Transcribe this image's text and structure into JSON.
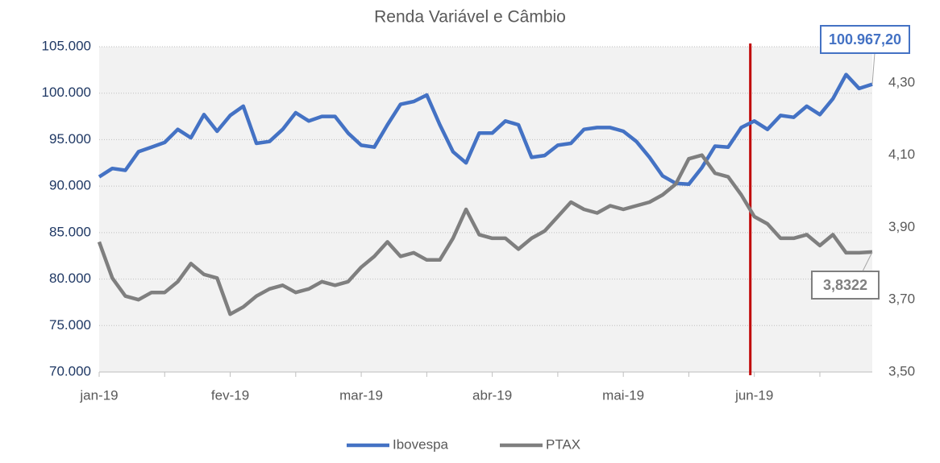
{
  "chart_data": {
    "type": "line",
    "title": "Renda Variável  e  Câmbio",
    "categories": [
      "jan-19",
      null,
      null,
      null,
      null,
      null,
      null,
      null,
      null,
      null,
      "fev-19",
      null,
      null,
      null,
      null,
      null,
      null,
      null,
      null,
      null,
      "mar-19",
      null,
      null,
      null,
      null,
      null,
      null,
      null,
      null,
      null,
      "abr-19",
      null,
      null,
      null,
      null,
      null,
      null,
      null,
      null,
      null,
      "mai-19",
      null,
      null,
      null,
      null,
      null,
      null,
      null,
      null,
      null,
      "jun-19",
      null,
      null,
      null,
      null,
      null,
      null,
      null,
      null,
      null
    ],
    "series": [
      {
        "name": "Ibovespa",
        "color": "#4472c4",
        "axis": "y",
        "values": [
          91000,
          91900,
          91700,
          93700,
          94200,
          94700,
          96100,
          95200,
          97700,
          95900,
          97600,
          98600,
          94600,
          94800,
          96100,
          97900,
          97000,
          97500,
          97500,
          95700,
          94400,
          94200,
          96600,
          98800,
          99100,
          99800,
          96600,
          93700,
          92500,
          95700,
          95700,
          97000,
          96600,
          93100,
          93300,
          94400,
          94600,
          96100,
          96300,
          96300,
          95900,
          94800,
          93100,
          91100,
          90300,
          90200,
          92000,
          94300,
          94200,
          96300,
          97000,
          96100,
          97600,
          97400,
          98600,
          97700,
          99400,
          102000,
          100500,
          100967.2
        ],
        "value_labels": [
          null,
          null,
          null,
          null,
          null,
          null,
          null,
          null,
          null,
          null,
          null,
          null,
          null,
          null,
          null,
          null,
          null,
          null,
          null,
          null,
          null,
          null,
          null,
          null,
          null,
          null,
          null,
          null,
          null,
          null,
          null,
          null,
          null,
          null,
          null,
          null,
          null,
          null,
          null,
          null,
          null,
          null,
          null,
          null,
          null,
          null,
          null,
          null,
          null,
          null,
          null,
          null,
          null,
          null,
          null,
          null,
          null,
          null,
          null,
          "100.967,20"
        ]
      },
      {
        "name": "PTAX",
        "color": "#7f7f7f",
        "axis": "y2",
        "values": [
          3.86,
          3.76,
          3.71,
          3.7,
          3.72,
          3.72,
          3.75,
          3.8,
          3.77,
          3.76,
          3.66,
          3.68,
          3.71,
          3.73,
          3.74,
          3.72,
          3.73,
          3.75,
          3.74,
          3.75,
          3.79,
          3.82,
          3.86,
          3.82,
          3.83,
          3.81,
          3.81,
          3.87,
          3.95,
          3.88,
          3.87,
          3.87,
          3.84,
          3.87,
          3.89,
          3.93,
          3.97,
          3.95,
          3.94,
          3.96,
          3.95,
          3.96,
          3.97,
          3.99,
          4.02,
          4.09,
          4.1,
          4.05,
          4.04,
          3.99,
          3.93,
          3.91,
          3.87,
          3.87,
          3.88,
          3.85,
          3.88,
          3.83,
          3.83,
          3.8322
        ],
        "value_labels": [
          null,
          null,
          null,
          null,
          null,
          null,
          null,
          null,
          null,
          null,
          null,
          null,
          null,
          null,
          null,
          null,
          null,
          null,
          null,
          null,
          null,
          null,
          null,
          null,
          null,
          null,
          null,
          null,
          null,
          null,
          null,
          null,
          null,
          null,
          null,
          null,
          null,
          null,
          null,
          null,
          null,
          null,
          null,
          null,
          null,
          null,
          null,
          null,
          null,
          null,
          null,
          null,
          null,
          null,
          null,
          null,
          null,
          null,
          null,
          "3,8322"
        ]
      }
    ],
    "ylim": [
      70000,
      105000
    ],
    "yticks": [
      {
        "value": 70000,
        "label": "70.000"
      },
      {
        "value": 75000,
        "label": "75.000"
      },
      {
        "value": 80000,
        "label": "80.000"
      },
      {
        "value": 85000,
        "label": "85.000"
      },
      {
        "value": 90000,
        "label": "90.000"
      },
      {
        "value": 95000,
        "label": "95.000"
      },
      {
        "value": 100000,
        "label": "100.000"
      },
      {
        "value": 105000,
        "label": "105.000"
      }
    ],
    "y2lim": [
      3.5,
      4.4
    ],
    "y2ticks": [
      {
        "value": 3.5,
        "label": "3,50"
      },
      {
        "value": 3.7,
        "label": "3,70"
      },
      {
        "value": 3.9,
        "label": "3,90"
      },
      {
        "value": 4.1,
        "label": "4,10"
      },
      {
        "value": 4.3,
        "label": "4,30"
      }
    ],
    "grid": true,
    "legend": "bottom"
  }
}
